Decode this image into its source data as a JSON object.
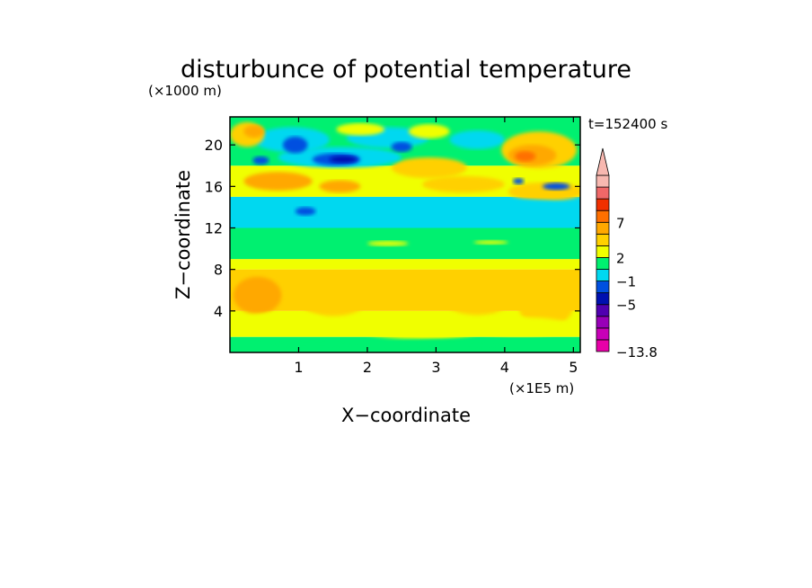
{
  "chart_data": {
    "type": "heatmap",
    "title": "disturbunce of potential temperature",
    "xlabel": "X−coordinate",
    "ylabel": "Z−coordinate",
    "x_unit": "(×1E5 m)",
    "y_unit": "(×1000 m)",
    "time_label": "t=152400 s",
    "xlim": [
      0,
      5.1
    ],
    "ylim": [
      0,
      22.7
    ],
    "x_ticks": [
      1,
      2,
      3,
      4,
      5
    ],
    "y_ticks": [
      4,
      8,
      12,
      16,
      20
    ],
    "colorbar": {
      "levels": [
        "−13.8",
        "−5",
        "−1",
        "2",
        "7"
      ],
      "min": -13.8,
      "colors": [
        "#e800a8",
        "#c800b8",
        "#9800b8",
        "#5000b0",
        "#0010b0",
        "#0050e0",
        "#00d8f0",
        "#00f070",
        "#f0ff00",
        "#ffd000",
        "#ffa800",
        "#ff7000",
        "#f03000",
        "#f06868",
        "#f8b8b0"
      ]
    },
    "layers": [
      {
        "z": [
          0,
          1.5
        ],
        "value": 0
      },
      {
        "z": [
          1.5,
          4
        ],
        "value": 1
      },
      {
        "z": [
          4,
          8
        ],
        "value": 2
      },
      {
        "z": [
          8,
          9
        ],
        "value": 1
      },
      {
        "z": [
          9,
          12
        ],
        "value": 0
      },
      {
        "z": [
          12,
          15
        ],
        "value": -1
      },
      {
        "z": [
          15,
          18
        ],
        "value": 1
      },
      {
        "z": [
          18,
          22.7
        ],
        "value": 0
      }
    ]
  }
}
